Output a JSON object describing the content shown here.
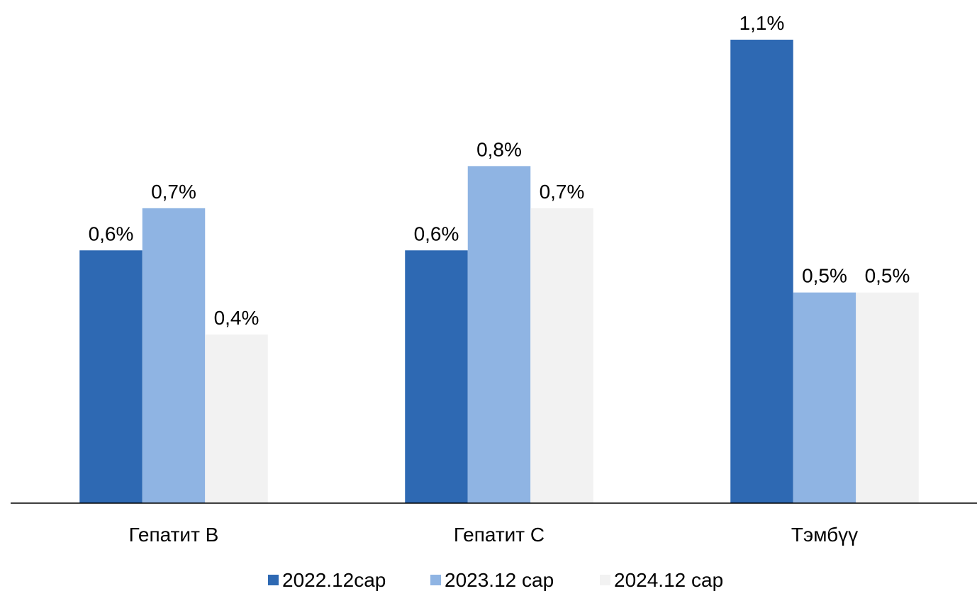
{
  "chart_data": {
    "type": "bar",
    "categories": [
      "Гепатит В",
      "Гепатит С",
      "Тэмбүү"
    ],
    "series": [
      {
        "name": "2022.12сар",
        "color": "#2e69b3",
        "values": [
          0.6,
          0.6,
          1.1
        ],
        "value_labels": [
          "0,6%",
          "0,6%",
          "1,1%"
        ]
      },
      {
        "name": "2023.12 сар",
        "color": "#8fb4e3",
        "values": [
          0.7,
          0.8,
          0.5
        ],
        "value_labels": [
          "0,7%",
          "0,8%",
          "0,5%"
        ]
      },
      {
        "name": "2024.12 сар",
        "color": "#f2f2f2",
        "values": [
          0.4,
          0.7,
          0.5
        ],
        "value_labels": [
          "0,4%",
          "0,7%",
          "0,5%"
        ]
      }
    ],
    "legend": "bottom"
  }
}
